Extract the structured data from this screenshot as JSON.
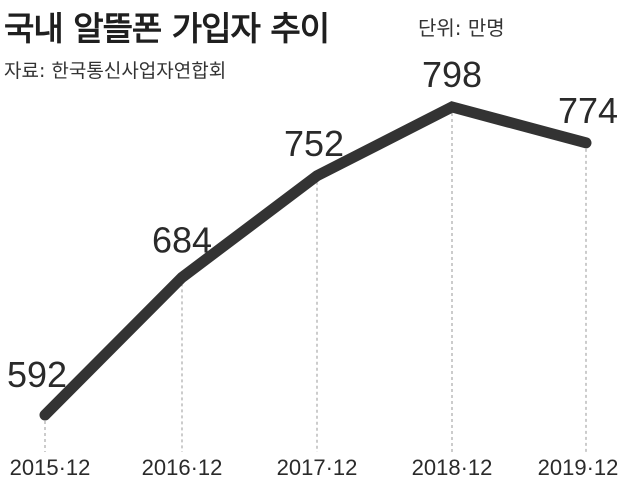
{
  "header": {
    "title": "국내 알뜰폰 가입자 추이",
    "unit": "단위: 만명",
    "source": "자료: 한국통신사업자연합회"
  },
  "chart_data": {
    "type": "line",
    "title": "국내 알뜰폰 가입자 추이",
    "unit": "단위: 만명",
    "categories": [
      "2015·12",
      "2016·12",
      "2017·12",
      "2018·12",
      "2019·12"
    ],
    "series": [
      {
        "values": [
          592,
          684,
          752,
          798,
          774
        ]
      }
    ],
    "ylim": [
      560,
      820
    ],
    "grid": "vertical dashed guide lines at each category",
    "legend": "none",
    "line_color": "#333333"
  }
}
